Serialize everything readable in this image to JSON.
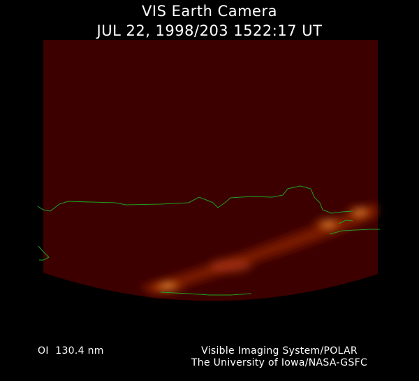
{
  "header": {
    "title": "VIS Earth Camera",
    "timestamp": "JUL 22, 1998/203 1522:17 UT"
  },
  "footer": {
    "wavelength": "OI  130.4 nm",
    "credit_line1": "Visible Imaging System/POLAR",
    "credit_line2": "The University of Iowa/NASA-GSFC"
  },
  "colors": {
    "background": "#000000",
    "image_field": "#3c0000",
    "coastline": "#1fa01f",
    "aurora": "#ff9a20"
  }
}
